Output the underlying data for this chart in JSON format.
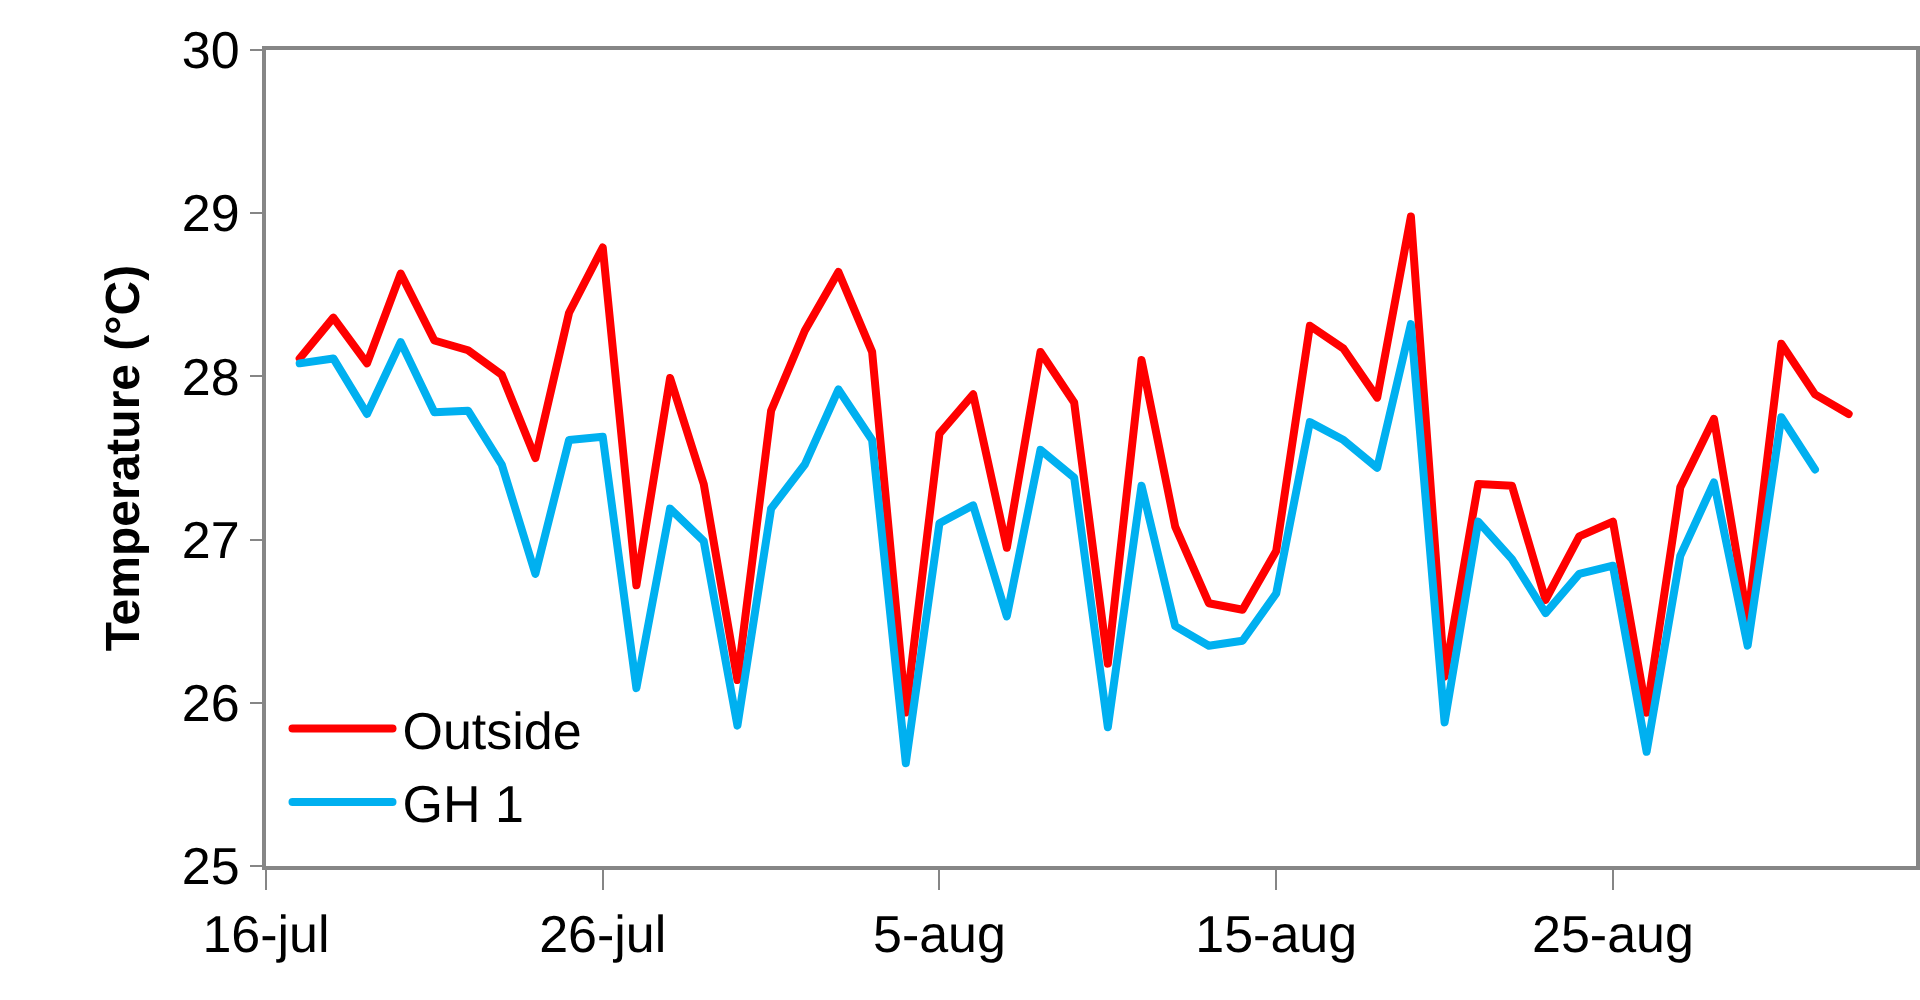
{
  "chart_data": {
    "type": "line",
    "ylabel": "Temperature (°C)",
    "x": [
      "--07-17",
      "--07-18",
      "--07-19",
      "--07-20",
      "--07-21",
      "--07-22",
      "--07-23",
      "--07-24",
      "--07-25",
      "--07-26",
      "--07-27",
      "--07-28",
      "--07-29",
      "--07-30",
      "--07-31",
      "--08-01",
      "--08-02",
      "--08-03",
      "--08-04",
      "--08-05",
      "--08-06",
      "--08-07",
      "--08-08",
      "--08-09",
      "--08-10",
      "--08-11",
      "--08-12",
      "--08-13",
      "--08-14",
      "--08-15",
      "--08-16",
      "--08-17",
      "--08-18",
      "--08-19",
      "--08-20",
      "--08-21",
      "--08-22",
      "--08-23",
      "--08-24",
      "--08-25",
      "--08-26",
      "--08-27",
      "--08-28",
      "--08-29",
      "--08-30",
      "--08-31",
      "--09-01"
    ],
    "series": [
      {
        "name": "Outside",
        "color": "#ff0000",
        "values": [
          28.11,
          28.36,
          28.08,
          28.63,
          28.22,
          28.16,
          28.01,
          27.5,
          28.39,
          28.79,
          26.72,
          27.99,
          27.34,
          26.14,
          27.79,
          28.28,
          28.64,
          28.15,
          25.94,
          27.65,
          27.89,
          26.95,
          28.15,
          27.84,
          26.24,
          28.1,
          27.08,
          26.61,
          26.57,
          26.93,
          28.31,
          28.17,
          27.87,
          28.98,
          26.16,
          27.34,
          27.33,
          26.63,
          27.02,
          27.11,
          25.94,
          27.32,
          27.74,
          26.51,
          28.2,
          27.89,
          27.77
        ]
      },
      {
        "name": "GH 1",
        "color": "#00b0f0",
        "values": [
          28.08,
          28.11,
          27.77,
          28.21,
          27.78,
          27.79,
          27.46,
          26.79,
          27.61,
          27.63,
          26.09,
          27.19,
          26.99,
          25.86,
          27.19,
          27.46,
          27.92,
          27.61,
          25.63,
          27.1,
          27.21,
          26.53,
          27.55,
          27.38,
          25.85,
          27.33,
          26.47,
          26.35,
          26.38,
          26.67,
          27.72,
          27.61,
          27.44,
          28.32,
          25.88,
          27.11,
          26.88,
          26.55,
          26.79,
          26.84,
          25.7,
          26.9,
          27.35,
          26.35,
          27.75,
          27.43,
          null
        ]
      }
    ],
    "xlim": [
      "--07-16",
      "--09-03"
    ],
    "xticks": [
      {
        "value": "--07-16",
        "label": "16-jul"
      },
      {
        "value": "--07-26",
        "label": "26-jul"
      },
      {
        "value": "--08-05",
        "label": "5-aug"
      },
      {
        "value": "--08-15",
        "label": "15-aug"
      },
      {
        "value": "--08-25",
        "label": "25-aug"
      }
    ],
    "ylim": [
      25,
      30
    ],
    "yticks": [
      25,
      26,
      27,
      28,
      29,
      30
    ],
    "grid": false,
    "legend": "bottom left",
    "marker": "none",
    "line_style": "solid"
  }
}
